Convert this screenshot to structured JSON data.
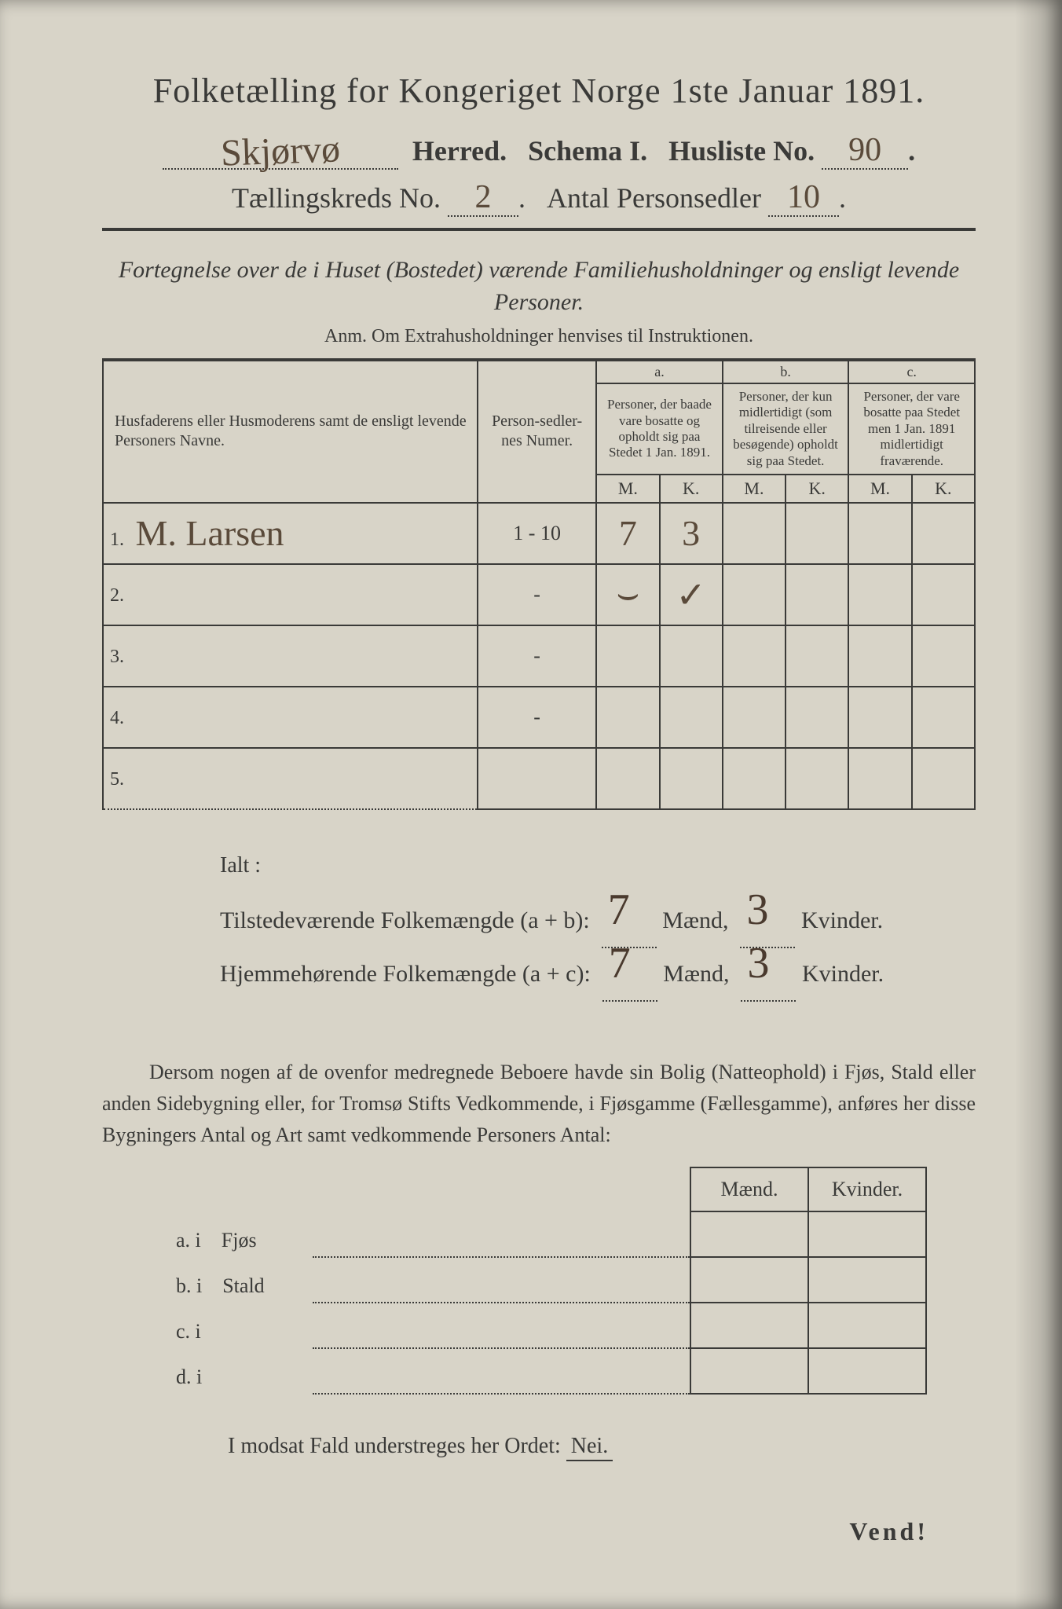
{
  "doc": {
    "title": "Folketælling for Kongeriget Norge 1ste Januar 1891.",
    "herred_hand": "Skjørvø",
    "herred_label": "Herred.",
    "schema": "Schema I.",
    "husliste_label": "Husliste No.",
    "husliste_no": "90",
    "kreds_label": "Tællingskreds No.",
    "kreds_no": "2",
    "antal_label": "Antal Personsedler",
    "antal_no": "10",
    "subtitle": "Fortegnelse over de i Huset (Bostedet) værende Familiehusholdninger og ensligt levende Personer.",
    "anm": "Anm.  Om Extrahusholdninger henvises til Instruktionen."
  },
  "table": {
    "head_name": "Husfaderens eller Husmoderens samt de ensligt levende Personers Navne.",
    "head_num": "Person-sedler-nes Numer.",
    "a_label": "a.",
    "a_text": "Personer, der baade vare bosatte og opholdt sig paa Stedet 1 Jan. 1891.",
    "b_label": "b.",
    "b_text": "Personer, der kun midlertidigt (som tilreisende eller besøgende) opholdt sig paa Stedet.",
    "c_label": "c.",
    "c_text": "Personer, der vare bosatte paa Stedet men 1 Jan. 1891 midlertidigt fraværende.",
    "M": "M.",
    "K": "K.",
    "rows": [
      {
        "n": "1.",
        "name": "M. Larsen",
        "num": "1 - 10",
        "aM": "7",
        "aK": "3",
        "bM": "",
        "bK": "",
        "cM": "",
        "cK": ""
      },
      {
        "n": "2.",
        "name": "",
        "num": "-",
        "aM": "⌣",
        "aK": "✓",
        "bM": "",
        "bK": "",
        "cM": "",
        "cK": ""
      },
      {
        "n": "3.",
        "name": "",
        "num": "-",
        "aM": "",
        "aK": "",
        "bM": "",
        "bK": "",
        "cM": "",
        "cK": ""
      },
      {
        "n": "4.",
        "name": "",
        "num": "-",
        "aM": "",
        "aK": "",
        "bM": "",
        "bK": "",
        "cM": "",
        "cK": ""
      },
      {
        "n": "5.",
        "name": "",
        "num": "",
        "aM": "",
        "aK": "",
        "bM": "",
        "bK": "",
        "cM": "",
        "cK": ""
      }
    ]
  },
  "totals": {
    "ialt": "Ialt :",
    "line1_a": "Tilstedeværende Folkemængde (a + b):",
    "line2_a": "Hjemmehørende Folkemængde (a + c):",
    "maend": "Mænd,",
    "kvinder": "Kvinder.",
    "v1m": "7",
    "v1k": "3",
    "v2m": "7",
    "v2k": "3"
  },
  "para": "Dersom nogen af de ovenfor medregnede Beboere havde sin Bolig (Natteophold) i Fjøs, Stald eller anden Sidebygning eller, for Tromsø Stifts Vedkommende, i Fjøsgamme (Fællesgamme), anføres her disse Bygningers Antal og Art samt vedkommende Personers Antal:",
  "mk": {
    "head_m": "Mænd.",
    "head_k": "Kvinder.",
    "rows": [
      {
        "lab": "a.  i",
        "name": "Fjøs"
      },
      {
        "lab": "b.  i",
        "name": "Stald"
      },
      {
        "lab": "c.  i",
        "name": ""
      },
      {
        "lab": "d.  i",
        "name": ""
      }
    ]
  },
  "nei": "I modsat Fald understreges her Ordet: Nei.",
  "nei_word": "Nei.",
  "vend": "Vend!",
  "colors": {
    "paper": "#d8d4c8",
    "ink": "#3a3a38",
    "handwriting": "#5a4a3a"
  },
  "typography": {
    "title_pt": 44,
    "body_pt": 26,
    "table_head_pt": 20,
    "family": "Georgia / serif",
    "hand_family": "cursive"
  }
}
